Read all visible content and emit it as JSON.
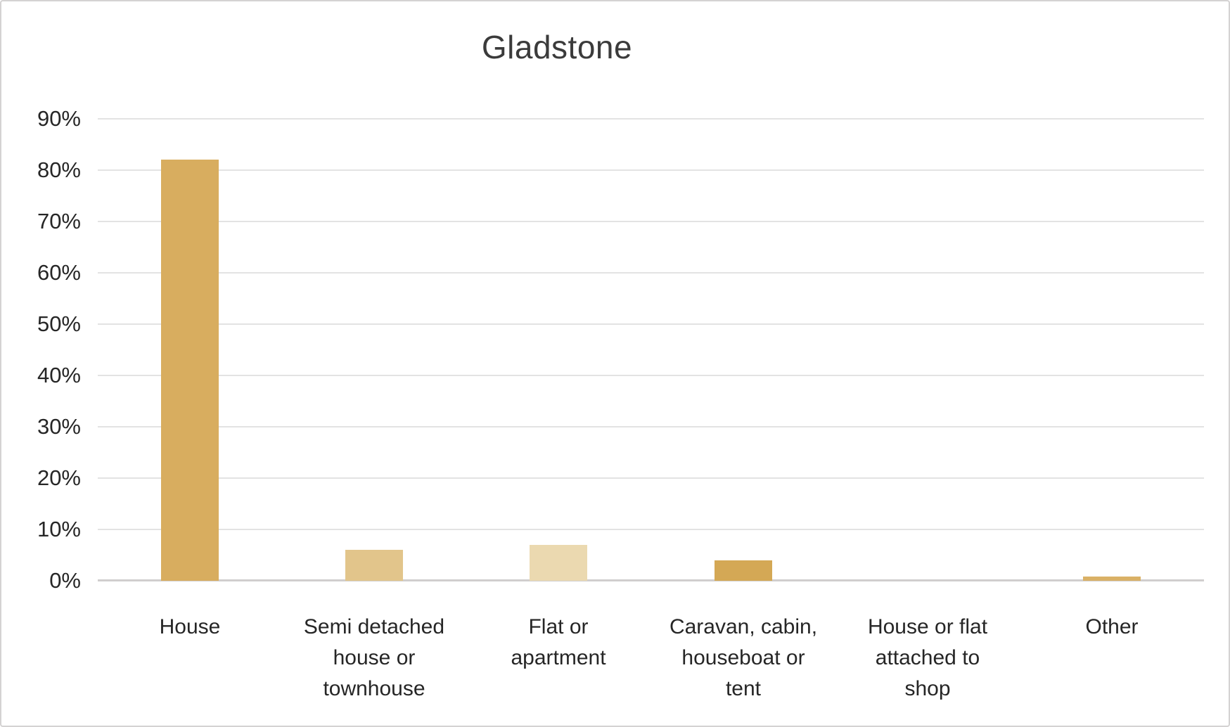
{
  "chart_data": {
    "type": "bar",
    "title": "Gladstone",
    "xlabel": "",
    "ylabel": "",
    "ylim": [
      0,
      90
    ],
    "grid": true,
    "legend": false,
    "ytick_labels": [
      "0%",
      "10%",
      "20%",
      "30%",
      "40%",
      "50%",
      "60%",
      "70%",
      "80%",
      "90%"
    ],
    "categories": [
      "House",
      "Semi detached house or townhouse",
      "Flat or apartment",
      "Caravan, cabin, houseboat or tent",
      "House or flat attached to shop",
      "Other"
    ],
    "category_label_lines": [
      [
        "House"
      ],
      [
        "Semi detached",
        "house or",
        "townhouse"
      ],
      [
        "Flat or",
        "apartment"
      ],
      [
        "Caravan, cabin,",
        "houseboat or",
        "tent"
      ],
      [
        "House or flat",
        "attached to",
        "shop"
      ],
      [
        "Other"
      ]
    ],
    "values": [
      82,
      6,
      7,
      4,
      0,
      0.8
    ],
    "bar_colors": [
      "#D8AD5F",
      "#E2C58B",
      "#EBD9B0",
      "#D4A855",
      "#D8AD5F",
      "#DAB166"
    ],
    "gridline_color": "#E3E3E3",
    "axis_line_color": "#D0CECE",
    "title_color": "#3B3B3B",
    "label_color": "#262626",
    "background_color": "#FFFFFF",
    "border_color": "#D4D2D2"
  }
}
